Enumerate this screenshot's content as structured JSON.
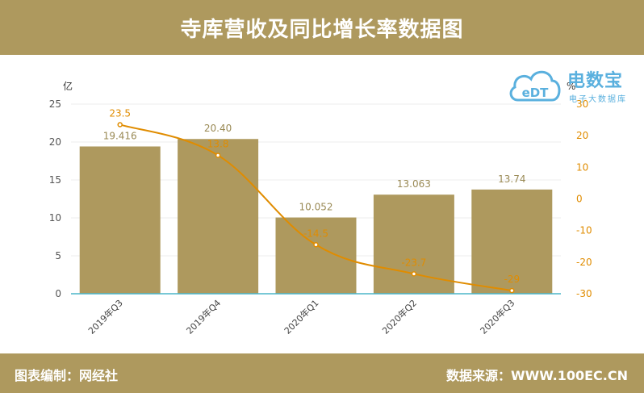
{
  "header": {
    "title": "寺库营收及同比增长率数据图"
  },
  "footer": {
    "left": "图表编制：网经社",
    "right": "数据来源：WWW.100EC.CN"
  },
  "logo": {
    "brand": "电数宝",
    "sub": "电子大数据库",
    "mark": "eDT",
    "icon": "cloud-logo-icon"
  },
  "colors": {
    "bar": "#ae995e",
    "line": "#e08c00",
    "axis": "#4bb5c9",
    "grid": "#ececec"
  },
  "chart_data": {
    "type": "bar",
    "categories": [
      "2019年Q3",
      "2019年Q4",
      "2020年Q1",
      "2020年Q2",
      "2020年Q3"
    ],
    "series": [
      {
        "name": "营收",
        "type": "bar",
        "axis": "left",
        "values": [
          19.416,
          20.4,
          10.052,
          13.063,
          13.74
        ],
        "labels": [
          "19.416",
          "20.40",
          "10.052",
          "13.063",
          "13.74"
        ]
      },
      {
        "name": "同比增长率",
        "type": "line",
        "axis": "right",
        "values": [
          23.5,
          13.8,
          -14.5,
          -23.7,
          -29
        ],
        "labels": [
          "23.5",
          "13.8",
          "-14.5",
          "-23.7",
          "-29"
        ]
      }
    ],
    "ylabel": "亿",
    "y2label": "%",
    "ylim": [
      0,
      25
    ],
    "y2lim": [
      -30,
      30
    ],
    "yticks": [
      0,
      5,
      10,
      15,
      20,
      25
    ],
    "y2ticks": [
      -30,
      -20,
      -10,
      0,
      10,
      20,
      30
    ],
    "grid": true
  }
}
